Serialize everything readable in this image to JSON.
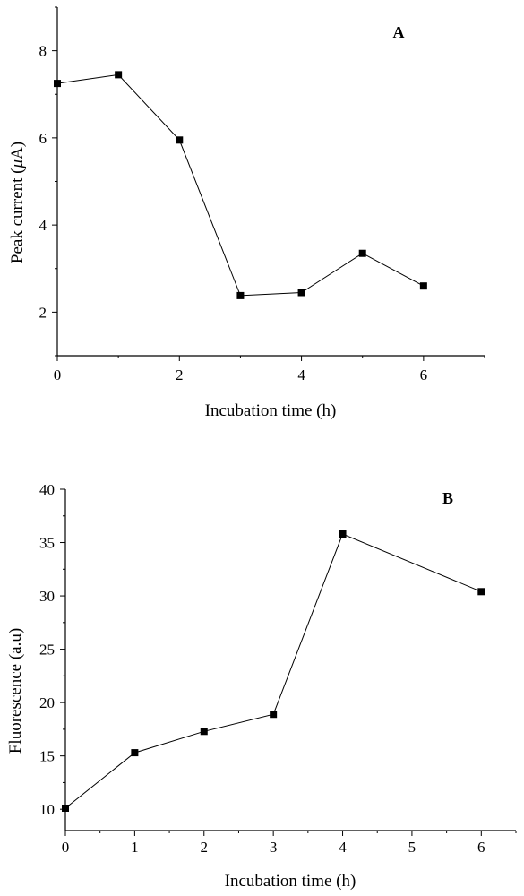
{
  "chart_data": [
    {
      "type": "line",
      "panel_label": "A",
      "xlabel": "Incubation time (h)",
      "ylabel_prefix": "Peak current (",
      "ylabel_mu": "μ",
      "ylabel_suffix": "A)",
      "x": [
        0,
        1,
        2,
        3,
        4,
        5,
        6
      ],
      "series": [
        {
          "values": [
            7.25,
            7.45,
            5.95,
            2.38,
            2.45,
            3.35,
            2.6
          ]
        }
      ],
      "xlim": [
        0,
        7
      ],
      "ylim": [
        1,
        9
      ],
      "xticks": [
        0,
        2,
        4,
        6
      ],
      "yticks": [
        2,
        4,
        6,
        8
      ],
      "color": "#000000"
    },
    {
      "type": "line",
      "panel_label": "B",
      "xlabel": "Incubation time (h)",
      "ylabel": "Fluorescence (a.u)",
      "x": [
        0,
        1,
        2,
        3,
        4,
        6
      ],
      "series": [
        {
          "values": [
            10.1,
            15.3,
            17.3,
            18.9,
            35.8,
            30.4
          ]
        }
      ],
      "xlim": [
        0,
        6.5
      ],
      "ylim": [
        8,
        40
      ],
      "xticks": [
        0,
        1,
        2,
        3,
        4,
        5,
        6
      ],
      "yticks": [
        10,
        15,
        20,
        25,
        30,
        35,
        40
      ],
      "color": "#000000"
    }
  ]
}
